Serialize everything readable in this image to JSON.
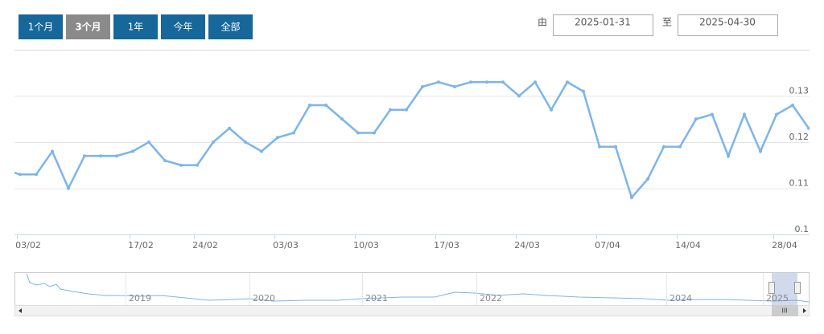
{
  "range_selector": {
    "buttons": [
      "1个月",
      "3个月",
      "1年",
      "今年",
      "全部"
    ],
    "selected": 1,
    "from_label": "由",
    "from": "2025-01-31",
    "to_label": "至",
    "to": "2025-04-30"
  },
  "chart_data": {
    "type": "line",
    "categories": [
      null,
      "03/02",
      null,
      null,
      null,
      null,
      null,
      null,
      "17/02",
      null,
      null,
      null,
      "24/02",
      null,
      null,
      null,
      null,
      "03/03",
      null,
      null,
      null,
      null,
      "10/03",
      null,
      null,
      null,
      null,
      "17/03",
      null,
      null,
      null,
      null,
      "24/03",
      null,
      null,
      null,
      null,
      "07/04",
      null,
      null,
      null,
      null,
      "14/04",
      null,
      null,
      null,
      null,
      null,
      "28/04",
      null,
      null
    ],
    "series": [
      {
        "color": "#7cb5ec",
        "values": [
          0.114,
          0.113,
          0.113,
          0.118,
          0.11,
          0.117,
          0.117,
          0.117,
          0.118,
          0.12,
          0.116,
          0.115,
          0.115,
          0.12,
          0.123,
          0.12,
          0.118,
          0.121,
          0.122,
          0.128,
          0.128,
          0.125,
          0.122,
          0.122,
          0.127,
          0.127,
          0.132,
          0.133,
          0.132,
          0.133,
          0.133,
          0.133,
          0.13,
          0.133,
          0.127,
          0.133,
          0.131,
          0.119,
          0.119,
          0.108,
          0.112,
          0.119,
          0.119,
          0.125,
          0.126,
          0.117,
          0.126,
          0.118,
          0.126,
          0.128,
          0.123
        ]
      }
    ],
    "ylim": [
      0.1,
      0.14
    ],
    "yticks": [
      0.1,
      0.11,
      0.12,
      0.13
    ],
    "grid": true
  },
  "navigator": {
    "year_labels": [
      "2019",
      "2020",
      "2021",
      "2022",
      "2024",
      "2025"
    ]
  }
}
